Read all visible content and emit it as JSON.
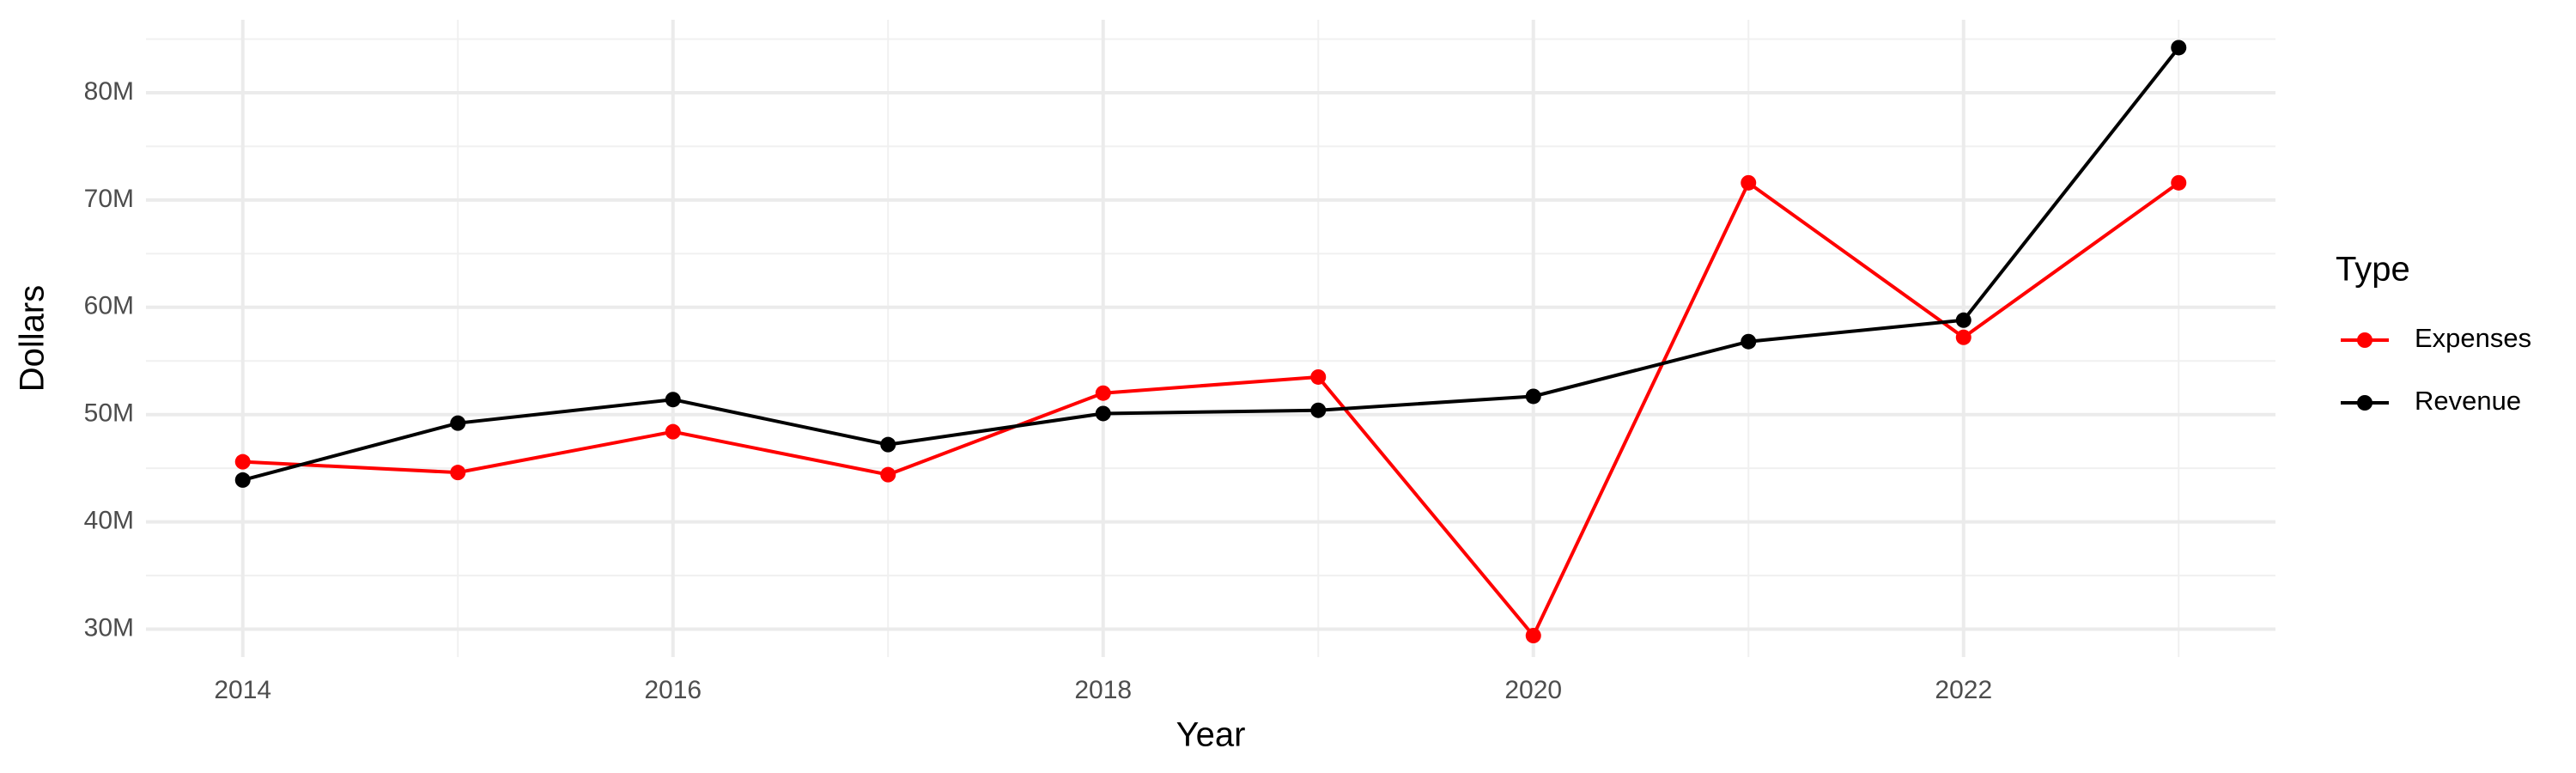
{
  "chart_data": {
    "type": "line",
    "x_label": "Year",
    "y_label": "Dollars",
    "legend_title": "Type",
    "legend_position": "right",
    "grid": true,
    "x": [
      2014,
      2015,
      2016,
      2017,
      2018,
      2019,
      2020,
      2021,
      2022,
      2023
    ],
    "series": [
      {
        "name": "Expenses",
        "color": "#ff0000",
        "values": [
          45600000,
          44600000,
          48400000,
          44400000,
          52000000,
          53500000,
          29400000,
          71600000,
          57200000,
          71600000
        ]
      },
      {
        "name": "Revenue",
        "color": "#000000",
        "values": [
          43900000,
          49200000,
          51400000,
          47200000,
          50100000,
          50400000,
          51700000,
          56800000,
          58800000,
          84200000
        ]
      }
    ],
    "xlim": [
      2013.55,
      2023.45
    ],
    "xticks": [
      2014,
      2016,
      2018,
      2020,
      2022
    ],
    "ylim": [
      27400000,
      86800000
    ],
    "yticks": [
      {
        "value": 30000000,
        "label": "30M"
      },
      {
        "value": 40000000,
        "label": "40M"
      },
      {
        "value": 50000000,
        "label": "50M"
      },
      {
        "value": 60000000,
        "label": "60M"
      },
      {
        "value": 70000000,
        "label": "70M"
      },
      {
        "value": 80000000,
        "label": "80M"
      }
    ]
  }
}
